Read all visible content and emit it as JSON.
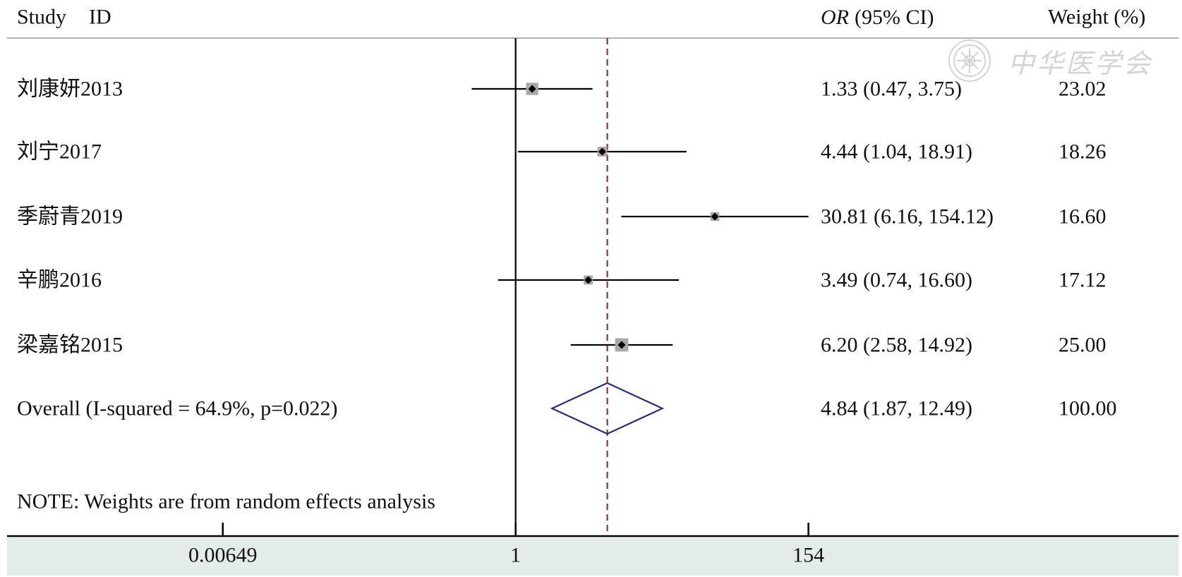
{
  "header": {
    "study": "Study",
    "id": "ID",
    "or": "OR",
    "ci": "(95% CI)",
    "weight": "Weight (%)"
  },
  "watermark": {
    "text": "中华医学会",
    "logo_icon": "association-emblem-icon"
  },
  "note": "NOTE: Weights are from random effects analysis",
  "colors": {
    "text": "#111111",
    "header_rule": "#b3b3b3",
    "reference_line": "#000000",
    "pooled_line": "#8b1d2c",
    "ci_line": "#000000",
    "weight_box": "#a8a8a8",
    "point": "#000000",
    "diamond": "#2d2f6c",
    "axis": "#000000",
    "axis_band": "#e4ecea",
    "watermark": "#d4d4d4"
  },
  "chart_data": {
    "type": "scatter",
    "x_scale": "log",
    "xlim": [
      0.00649,
      154
    ],
    "xticks": [
      0.00649,
      1,
      154
    ],
    "xtick_labels": [
      "0.00649",
      "1",
      "154"
    ],
    "reference_value": 1,
    "pooled_value": 4.84,
    "studies": [
      {
        "id": "刘康妍2013",
        "or": 1.33,
        "lower": 0.47,
        "upper": 3.75,
        "or_ci_text": "1.33 (0.47, 3.75)",
        "weight": 23.02,
        "weight_text": "23.02"
      },
      {
        "id": "刘宁2017",
        "or": 4.44,
        "lower": 1.04,
        "upper": 18.91,
        "or_ci_text": "4.44 (1.04, 18.91)",
        "weight": 18.26,
        "weight_text": "18.26"
      },
      {
        "id": "季蔚青2019",
        "or": 30.81,
        "lower": 6.16,
        "upper": 154.12,
        "or_ci_text": "30.81 (6.16, 154.12)",
        "weight": 16.6,
        "weight_text": "16.60"
      },
      {
        "id": "辛鹏2016",
        "or": 3.49,
        "lower": 0.74,
        "upper": 16.6,
        "or_ci_text": "3.49 (0.74, 16.60)",
        "weight": 17.12,
        "weight_text": "17.12"
      },
      {
        "id": "梁嘉铭2015",
        "or": 6.2,
        "lower": 2.58,
        "upper": 14.92,
        "or_ci_text": "6.20 (2.58, 14.92)",
        "weight": 25.0,
        "weight_text": "25.00"
      }
    ],
    "overall": {
      "label": "Overall (I-squared = 64.9%, p=0.022)",
      "or": 4.84,
      "lower": 1.87,
      "upper": 12.49,
      "or_ci_text": "4.84 (1.87, 12.49)",
      "weight": 100.0,
      "weight_text": "100.00"
    }
  }
}
